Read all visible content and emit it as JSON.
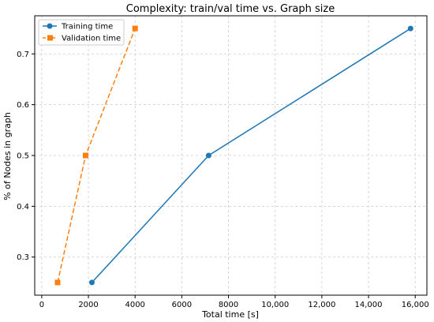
{
  "chart_data": {
    "type": "line",
    "title": "Complexity: train/val time vs. Graph size",
    "xlabel": "Total time [s]",
    "ylabel": "% of Nodes in graph",
    "xlim": [
      -300,
      16500
    ],
    "ylim": [
      0.225,
      0.775
    ],
    "x_ticks": [
      0,
      2000,
      4000,
      6000,
      8000,
      10000,
      12000,
      14000,
      16000
    ],
    "x_tick_labels": [
      "0",
      "2000",
      "4000",
      "6000",
      "8000",
      "10,000",
      "12,000",
      "14,000",
      "16,000"
    ],
    "y_ticks": [
      0.3,
      0.4,
      0.5,
      0.6,
      0.7
    ],
    "y_tick_labels": [
      "0.3",
      "0.4",
      "0.5",
      "0.6",
      "0.7"
    ],
    "grid": true,
    "legend_position": "top-left",
    "series": [
      {
        "name": "Training time",
        "color": "#1f77b4",
        "marker": "circle",
        "line_style": "solid",
        "x": [
          2150,
          7150,
          15800
        ],
        "y": [
          0.25,
          0.5,
          0.75
        ]
      },
      {
        "name": "Validation time",
        "color": "#ff7f0e",
        "marker": "square",
        "line_style": "dashed",
        "x": [
          680,
          1880,
          4000
        ],
        "y": [
          0.25,
          0.5,
          0.75
        ]
      }
    ]
  }
}
